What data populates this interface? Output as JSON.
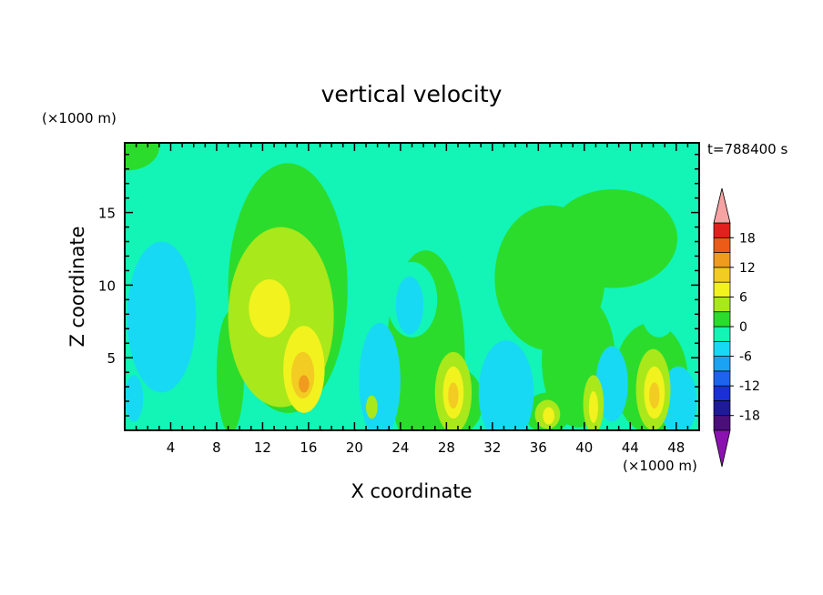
{
  "chart_data": {
    "type": "heatmap",
    "title": "vertical velocity",
    "xlabel": "X coordinate",
    "ylabel": "Z coordinate",
    "x_unit": "(×1000 m)",
    "y_unit": "(×1000 m)",
    "time_label": "t=788400 s",
    "xlim": [
      0,
      50
    ],
    "ylim": [
      0,
      19.8
    ],
    "x_ticks": [
      4,
      8,
      12,
      16,
      20,
      24,
      28,
      32,
      36,
      40,
      44,
      48
    ],
    "y_ticks": [
      5,
      10,
      15
    ],
    "colorbar": {
      "levels": [
        -21,
        -18,
        -15,
        -12,
        -9,
        -6,
        -3,
        0,
        3,
        6,
        9,
        12,
        15,
        18,
        21
      ],
      "tick_labels": [
        18,
        12,
        6,
        0,
        -6,
        -12,
        -18
      ],
      "colors": [
        "#4b0f7a",
        "#1f1a9a",
        "#1a2fd6",
        "#1d63ee",
        "#1aa2f5",
        "#18d9f3",
        "#12f5b6",
        "#2cdc2c",
        "#a9e81a",
        "#f1f21e",
        "#f2cc22",
        "#f09a1e",
        "#ec5b17",
        "#e0211d"
      ],
      "under_color": "#8b12b0",
      "over_color": "#f6a3a3"
    },
    "background_level_color": "#12f5b6",
    "regions": [
      {
        "level": "0 to 3",
        "color": "#2cdc2c",
        "x": 0.2,
        "y": 19.5,
        "rx": 2.8,
        "ry": 1.6
      },
      {
        "level": "0 to 3",
        "color": "#2cdc2c",
        "x": 14.2,
        "y": 9.8,
        "rx": 5.2,
        "ry": 8.6
      },
      {
        "level": "0 to 3",
        "color": "#2cdc2c",
        "x": 26.2,
        "y": 5.2,
        "rx": 3.4,
        "ry": 7.2
      },
      {
        "level": "0 to 3",
        "color": "#2cdc2c",
        "x": 37.0,
        "y": 10.5,
        "rx": 4.8,
        "ry": 5.0
      },
      {
        "level": "0 to 3",
        "color": "#2cdc2c",
        "x": 42.5,
        "y": 13.2,
        "rx": 5.6,
        "ry": 3.4
      },
      {
        "level": "0 to 3",
        "color": "#2cdc2c",
        "x": 39.5,
        "y": 4.8,
        "rx": 3.2,
        "ry": 4.6
      },
      {
        "level": "0 to 3",
        "color": "#2cdc2c",
        "x": 45.8,
        "y": 3.6,
        "rx": 3.2,
        "ry": 3.8
      },
      {
        "level": "0 to 3",
        "color": "#2cdc2c",
        "x": 28.6,
        "y": 2.0,
        "rx": 2.6,
        "ry": 2.4
      },
      {
        "level": "0 to 3",
        "color": "#2cdc2c",
        "x": 36.8,
        "y": 1.2,
        "rx": 2.0,
        "ry": 1.4
      },
      {
        "level": "0 to 3",
        "color": "#2cdc2c",
        "x": 9.2,
        "y": 4.0,
        "rx": 1.2,
        "ry": 4.2
      },
      {
        "level": "-3 to 0",
        "color": "#12f5b6",
        "x": 25.0,
        "y": 9.0,
        "rx": 2.2,
        "ry": 2.6
      },
      {
        "level": "-3 to 0",
        "color": "#12f5b6",
        "x": 46.5,
        "y": 8.4,
        "rx": 1.6,
        "ry": 2.0
      },
      {
        "level": "-6 to -3",
        "color": "#18d9f3",
        "x": 3.2,
        "y": 7.8,
        "rx": 3.0,
        "ry": 5.2
      },
      {
        "level": "-6 to -3",
        "color": "#18d9f3",
        "x": 22.2,
        "y": 3.4,
        "rx": 1.8,
        "ry": 4.0
      },
      {
        "level": "-6 to -3",
        "color": "#18d9f3",
        "x": 33.2,
        "y": 2.6,
        "rx": 2.4,
        "ry": 3.6
      },
      {
        "level": "-6 to -3",
        "color": "#18d9f3",
        "x": 42.4,
        "y": 3.2,
        "rx": 1.4,
        "ry": 2.6
      },
      {
        "level": "-6 to -3",
        "color": "#18d9f3",
        "x": 48.2,
        "y": 2.0,
        "rx": 1.6,
        "ry": 2.4
      },
      {
        "level": "-6 to -3",
        "color": "#18d9f3",
        "x": 24.8,
        "y": 8.6,
        "rx": 1.2,
        "ry": 2.0
      },
      {
        "level": "-6 to -3",
        "color": "#18d9f3",
        "x": 0.8,
        "y": 2.2,
        "rx": 0.8,
        "ry": 1.6
      },
      {
        "level": "3 to 6",
        "color": "#a9e81a",
        "x": 13.6,
        "y": 7.8,
        "rx": 4.6,
        "ry": 6.2
      },
      {
        "level": "3 to 6",
        "color": "#a9e81a",
        "x": 28.6,
        "y": 2.6,
        "rx": 1.6,
        "ry": 2.8
      },
      {
        "level": "3 to 6",
        "color": "#a9e81a",
        "x": 46.0,
        "y": 2.8,
        "rx": 1.5,
        "ry": 2.8
      },
      {
        "level": "3 to 6",
        "color": "#a9e81a",
        "x": 40.8,
        "y": 1.8,
        "rx": 0.9,
        "ry": 2.0
      },
      {
        "level": "3 to 6",
        "color": "#a9e81a",
        "x": 36.8,
        "y": 1.1,
        "rx": 1.1,
        "ry": 1.0
      },
      {
        "level": "3 to 6",
        "color": "#a9e81a",
        "x": 21.5,
        "y": 1.6,
        "rx": 0.5,
        "ry": 0.8
      },
      {
        "level": "6 to 9",
        "color": "#f1f21e",
        "x": 12.6,
        "y": 8.4,
        "rx": 1.8,
        "ry": 2.0
      },
      {
        "level": "6 to 9",
        "color": "#f1f21e",
        "x": 15.6,
        "y": 4.2,
        "rx": 1.8,
        "ry": 3.0
      },
      {
        "level": "6 to 9",
        "color": "#f1f21e",
        "x": 28.6,
        "y": 2.6,
        "rx": 0.9,
        "ry": 1.8
      },
      {
        "level": "6 to 9",
        "color": "#f1f21e",
        "x": 46.1,
        "y": 2.6,
        "rx": 0.9,
        "ry": 1.8
      },
      {
        "level": "6 to 9",
        "color": "#f1f21e",
        "x": 40.8,
        "y": 1.6,
        "rx": 0.4,
        "ry": 1.1
      },
      {
        "level": "6 to 9",
        "color": "#f1f21e",
        "x": 36.9,
        "y": 1.0,
        "rx": 0.5,
        "ry": 0.6
      },
      {
        "level": "9 to 12",
        "color": "#f2cc22",
        "x": 15.5,
        "y": 3.8,
        "rx": 1.0,
        "ry": 1.6
      },
      {
        "level": "9 to 12",
        "color": "#f2cc22",
        "x": 28.6,
        "y": 2.4,
        "rx": 0.45,
        "ry": 0.9
      },
      {
        "level": "9 to 12",
        "color": "#f2cc22",
        "x": 46.1,
        "y": 2.4,
        "rx": 0.45,
        "ry": 0.9
      },
      {
        "level": "12 to 15",
        "color": "#f09a1e",
        "x": 15.6,
        "y": 3.2,
        "rx": 0.45,
        "ry": 0.6
      }
    ]
  }
}
